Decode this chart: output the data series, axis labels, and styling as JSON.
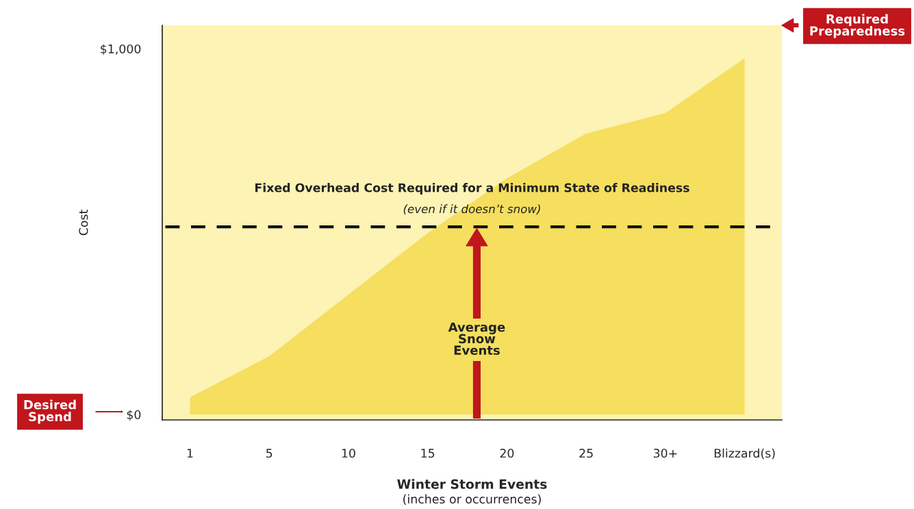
{
  "chart_data": {
    "type": "area",
    "xlabel": "Winter Storm Events",
    "ylabel": "Cost",
    "categories": [
      "1",
      "5",
      "10",
      "15",
      "20",
      "25",
      "30+",
      "Blizzard(s)"
    ],
    "series": [
      {
        "color": "#f6de5e",
        "values": [
          47,
          159,
          328,
          496,
          646,
          768,
          824,
          974
        ]
      }
    ],
    "ylim": [
      -15,
      1064
    ],
    "yticks": [
      {
        "value": 0,
        "label": "$0"
      },
      {
        "value": 1000,
        "label": "$1,000"
      }
    ],
    "grid": false,
    "legend": false,
    "ref_lines": [
      {
        "axis": "y",
        "value": 513,
        "label": "Fixed Overhead Cost Required for a Minimum State of Readiness",
        "color": "#111111",
        "line_style": "dashed"
      }
    ],
    "annotations": [
      "(even if it doesn’t snow)",
      "(inches or occurrences)",
      "Average\nSnow\nEvents",
      "Desired\nSpend",
      "Required\nPreparedness"
    ]
  }
}
